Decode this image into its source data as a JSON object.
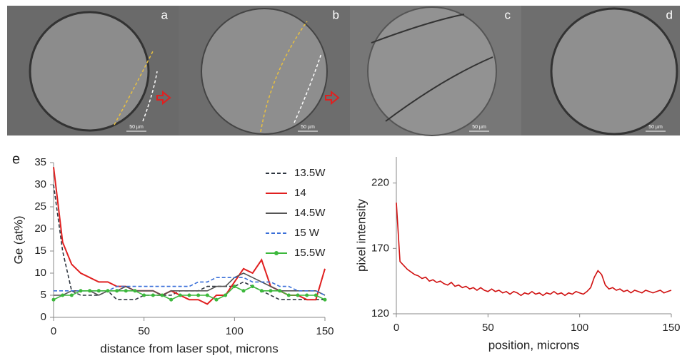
{
  "panels": [
    {
      "label": "a",
      "scale_bar": "50 µm"
    },
    {
      "label": "b",
      "scale_bar": "50 µm"
    },
    {
      "label": "c",
      "scale_bar": "50 µm"
    },
    {
      "label": "d",
      "scale_bar": "50 µm"
    }
  ],
  "chart_data": [
    {
      "type": "line",
      "panel_label": "e",
      "x_label": "distance from laser spot,  microns",
      "y_label": "Ge (at%)",
      "xlim": [
        0,
        150
      ],
      "xticks": [
        0,
        50,
        100,
        150
      ],
      "ylim": [
        0,
        35
      ],
      "yticks": [
        0,
        5,
        10,
        15,
        20,
        25,
        30,
        35
      ],
      "x": [
        0,
        5,
        10,
        15,
        20,
        25,
        30,
        35,
        40,
        45,
        50,
        55,
        60,
        65,
        70,
        75,
        80,
        85,
        90,
        95,
        100,
        105,
        110,
        115,
        120,
        125,
        130,
        135,
        140,
        145,
        150
      ],
      "series": [
        {
          "name": "13.5W",
          "color": "#2f3640",
          "dash": true,
          "marker": false,
          "values": [
            30,
            15,
            6,
            5,
            5,
            5,
            6,
            4,
            4,
            4,
            5,
            5,
            5,
            5,
            6,
            6,
            6,
            7,
            7,
            7,
            7,
            8,
            7,
            6,
            5,
            4,
            4,
            4,
            4,
            4,
            4
          ]
        },
        {
          "name": "14",
          "color": "#e02020",
          "dash": false,
          "marker": false,
          "values": [
            34,
            17,
            12,
            10,
            9,
            8,
            8,
            7,
            7,
            6,
            6,
            6,
            5,
            6,
            5,
            4,
            4,
            3,
            5,
            5,
            8,
            11,
            10,
            13,
            7,
            6,
            5,
            5,
            4,
            4,
            11
          ]
        },
        {
          "name": "14.5W",
          "color": "#555555",
          "dash": false,
          "marker": false,
          "values": [
            5,
            5,
            6,
            6,
            6,
            5,
            6,
            6,
            7,
            6,
            6,
            6,
            5,
            6,
            6,
            6,
            6,
            6,
            7,
            7,
            9,
            10,
            9,
            8,
            7,
            6,
            6,
            6,
            6,
            6,
            5
          ]
        },
        {
          "name": "15 W",
          "color": "#3a6fd8",
          "dash": true,
          "marker": false,
          "values": [
            6,
            6,
            6,
            6,
            6,
            6,
            6,
            7,
            7,
            7,
            7,
            7,
            7,
            7,
            7,
            7,
            8,
            8,
            9,
            9,
            9,
            9,
            8,
            8,
            8,
            7,
            7,
            6,
            6,
            6,
            5
          ]
        },
        {
          "name": "15.5W",
          "color": "#3cb83c",
          "dash": false,
          "marker": true,
          "values": [
            4,
            5,
            5,
            6,
            6,
            6,
            6,
            6,
            6,
            6,
            5,
            5,
            5,
            4,
            5,
            5,
            5,
            5,
            4,
            5,
            7,
            6,
            7,
            6,
            6,
            6,
            5,
            5,
            5,
            5,
            4
          ]
        }
      ]
    },
    {
      "type": "line",
      "x_label": "position, microns",
      "y_label": "pixel intensity",
      "xlim": [
        0,
        150
      ],
      "xticks": [
        0,
        50,
        100,
        150
      ],
      "ylim": [
        120,
        240
      ],
      "yticks": [
        120,
        170,
        220
      ],
      "x": [
        0,
        2,
        4,
        6,
        8,
        10,
        12,
        14,
        16,
        18,
        20,
        22,
        24,
        26,
        28,
        30,
        32,
        34,
        36,
        38,
        40,
        42,
        44,
        46,
        48,
        50,
        52,
        54,
        56,
        58,
        60,
        62,
        64,
        66,
        68,
        70,
        72,
        74,
        76,
        78,
        80,
        82,
        84,
        86,
        88,
        90,
        92,
        94,
        96,
        98,
        100,
        102,
        104,
        106,
        108,
        110,
        112,
        114,
        116,
        118,
        120,
        122,
        124,
        126,
        128,
        130,
        132,
        134,
        136,
        138,
        140,
        142,
        144,
        146,
        148,
        150
      ],
      "series": [
        {
          "name": null,
          "color": "#d01010",
          "dash": false,
          "marker": false,
          "values": [
            205,
            160,
            157,
            154,
            152,
            150,
            149,
            147,
            148,
            145,
            146,
            144,
            145,
            143,
            142,
            144,
            141,
            142,
            140,
            141,
            139,
            140,
            138,
            140,
            138,
            137,
            139,
            137,
            138,
            136,
            137,
            135,
            137,
            136,
            134,
            136,
            135,
            137,
            135,
            136,
            134,
            136,
            135,
            137,
            135,
            136,
            134,
            136,
            135,
            137,
            136,
            135,
            137,
            140,
            148,
            153,
            150,
            142,
            139,
            140,
            138,
            139,
            137,
            138,
            136,
            138,
            137,
            136,
            138,
            137,
            136,
            137,
            138,
            136,
            137,
            138
          ]
        }
      ]
    }
  ]
}
